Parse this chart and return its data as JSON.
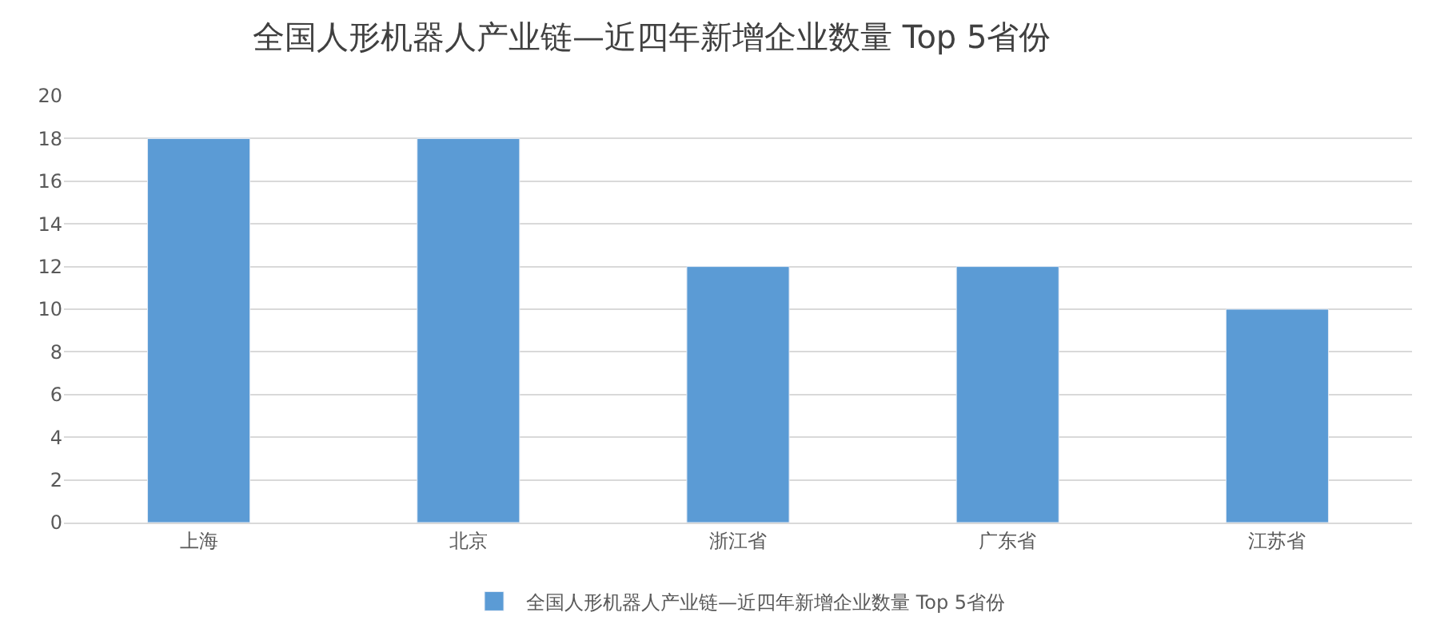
{
  "chart_data": {
    "type": "bar",
    "title": "全国人形机器人产业链—近四年新增企业数量 Top 5省份",
    "categories": [
      "上海",
      "北京",
      "浙江省",
      "广东省",
      "江苏省"
    ],
    "series": [
      {
        "name": "全国人形机器人产业链—近四年新增企业数量 Top 5省份",
        "color": "#5b9bd5",
        "values": [
          18,
          18,
          12,
          12,
          10
        ]
      }
    ],
    "ylim": [
      0,
      20
    ],
    "yticks": [
      0,
      2,
      4,
      6,
      8,
      10,
      12,
      14,
      16,
      18,
      20
    ],
    "grid": "y",
    "legend": "bottom"
  }
}
